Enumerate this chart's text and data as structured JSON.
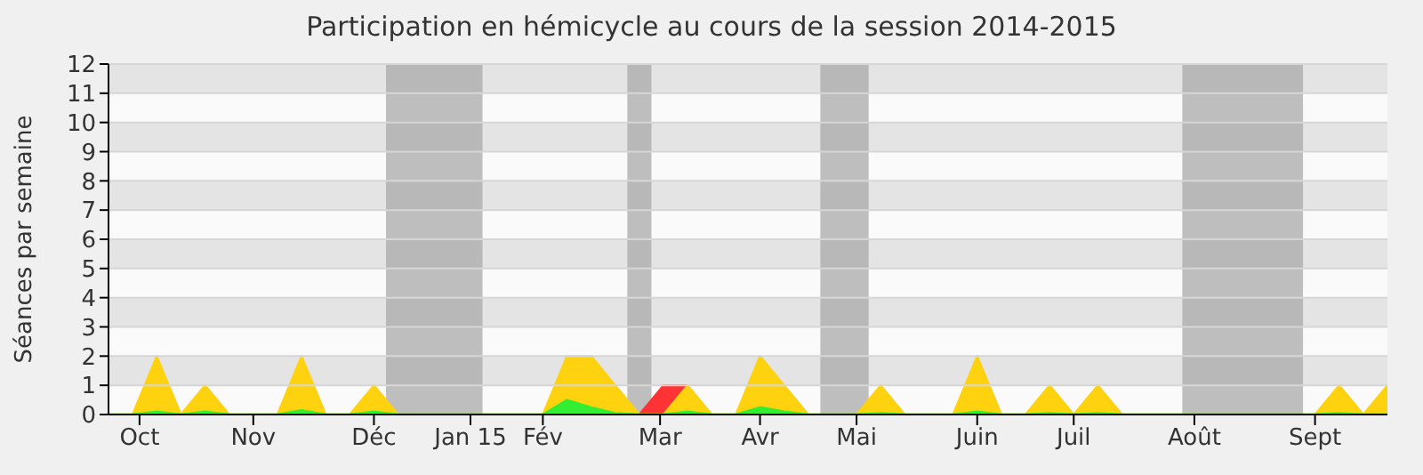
{
  "chart_data": {
    "type": "area",
    "title": "Participation en hémicycle au cours de la session 2014-2015",
    "ylabel": "Séances par semaine",
    "x": [
      "2014-09-22",
      "2014-09-29",
      "2014-10-06",
      "2014-10-13",
      "2014-10-20",
      "2014-10-27",
      "2014-11-03",
      "2014-11-10",
      "2014-11-17",
      "2014-11-24",
      "2014-12-01",
      "2014-12-08",
      "2014-12-15",
      "2014-12-22",
      "2014-12-29",
      "2015-01-05",
      "2015-01-12",
      "2015-01-19",
      "2015-01-26",
      "2015-02-02",
      "2015-02-09",
      "2015-02-16",
      "2015-02-23",
      "2015-03-02",
      "2015-03-09",
      "2015-03-16",
      "2015-03-23",
      "2015-03-30",
      "2015-04-06",
      "2015-04-13",
      "2015-04-20",
      "2015-04-27",
      "2015-05-04",
      "2015-05-11",
      "2015-05-18",
      "2015-05-25",
      "2015-06-01",
      "2015-06-08",
      "2015-06-15",
      "2015-06-22",
      "2015-06-29",
      "2015-07-06",
      "2015-07-13",
      "2015-07-20",
      "2015-07-27",
      "2015-08-03",
      "2015-08-10",
      "2015-08-17",
      "2015-08-24",
      "2015-08-31",
      "2015-09-07",
      "2015-09-14",
      "2015-09-21",
      "2015-09-28"
    ],
    "series": [
      {
        "color": "#ff3333",
        "values": [
          null,
          null,
          null,
          null,
          null,
          null,
          null,
          null,
          null,
          null,
          null,
          null,
          null,
          null,
          null,
          null,
          null,
          null,
          null,
          null,
          null,
          null,
          0,
          1,
          1,
          null,
          null,
          null,
          null,
          null,
          null,
          null,
          null,
          null,
          null,
          null,
          null,
          null,
          null,
          null,
          null,
          null,
          null,
          null,
          null,
          null,
          null,
          null,
          null,
          null,
          null,
          null,
          null,
          null
        ]
      },
      {
        "color": "#ffd20f",
        "values": [
          0,
          0,
          2,
          0,
          1,
          0,
          0,
          0,
          2,
          0,
          0,
          1,
          0,
          0,
          0,
          0,
          0,
          0,
          0,
          2,
          2,
          1,
          0,
          0,
          1,
          0,
          0,
          2,
          1,
          0,
          0,
          0,
          1,
          0,
          0,
          0,
          2,
          0,
          0,
          1,
          0,
          1,
          0,
          0,
          0,
          0,
          0,
          0,
          0,
          0,
          0,
          1,
          0,
          1
        ]
      },
      {
        "color": "#33ee33",
        "values": [
          0,
          0,
          0.1,
          0,
          0.1,
          0,
          0,
          0,
          0.15,
          0,
          0,
          0.1,
          0,
          0,
          0,
          0,
          0,
          0,
          0,
          0.5,
          0.25,
          0.05,
          0,
          0,
          0.1,
          0,
          0,
          0.25,
          0.1,
          0,
          0,
          0,
          0.05,
          0,
          0,
          0,
          0.1,
          0,
          0,
          0.05,
          0,
          0.05,
          0,
          0,
          0,
          0,
          0,
          0,
          0,
          0,
          0,
          0.05,
          0,
          0
        ]
      }
    ],
    "xlim": [
      "2014-09-22",
      "2015-09-28"
    ],
    "xticks": [
      {
        "value": "2014-10-01",
        "label": "Oct"
      },
      {
        "value": "2014-11-03",
        "label": "Nov"
      },
      {
        "value": "2014-12-08",
        "label": "Déc"
      },
      {
        "value": "2015-01-05",
        "label": "Jan 15"
      },
      {
        "value": "2015-01-26",
        "label": "Fév"
      },
      {
        "value": "2015-03-01",
        "label": "Mar"
      },
      {
        "value": "2015-03-30",
        "label": "Avr"
      },
      {
        "value": "2015-04-27",
        "label": "Mai"
      },
      {
        "value": "2015-06-01",
        "label": "Juin"
      },
      {
        "value": "2015-06-29",
        "label": "Juil"
      },
      {
        "value": "2015-08-03",
        "label": "Août"
      },
      {
        "value": "2015-09-07",
        "label": "Sept"
      }
    ],
    "ylim": [
      0,
      12
    ],
    "yticks": [
      0,
      1,
      2,
      3,
      4,
      5,
      6,
      7,
      8,
      9,
      10,
      11,
      12
    ],
    "bands": [
      {
        "axis": "x",
        "from": "2014-12-11T12:00",
        "to": "2015-01-08T12:00",
        "color": "#aaaaaa"
      },
      {
        "axis": "x",
        "from": "2015-02-19T12:00",
        "to": "2015-02-26T12:00",
        "color": "#aaaaaa"
      },
      {
        "axis": "x",
        "from": "2015-04-16T12:00",
        "to": "2015-04-30T12:00",
        "color": "#aaaaaa"
      },
      {
        "axis": "x",
        "from": "2015-07-30T12:00",
        "to": "2015-09-03T12:00",
        "color": "#aaaaaa"
      }
    ],
    "grid": "y",
    "legend": false
  }
}
